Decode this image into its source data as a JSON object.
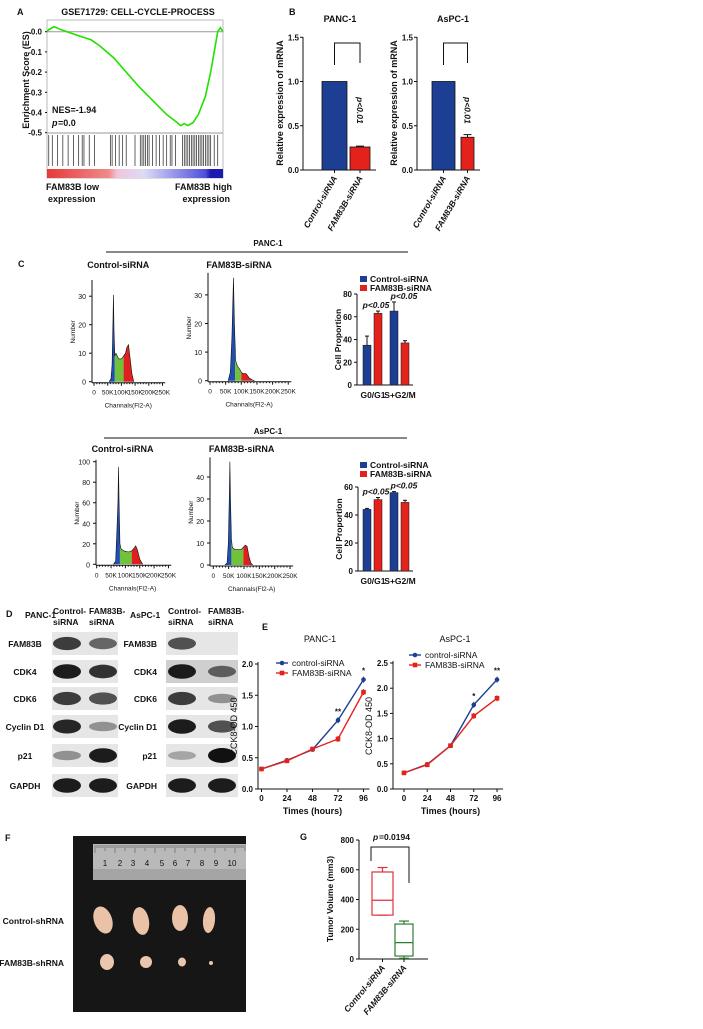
{
  "panel_labels": {
    "A": "A",
    "B": "B",
    "C": "C",
    "D": "D",
    "E": "E",
    "F": "F",
    "G": "G"
  },
  "colors": {
    "control_blue": "#1c3f94",
    "fam83b_red": "#e3231b",
    "es_green": "#22e000",
    "box_red": "#e0303c",
    "box_green": "#2e7d32",
    "g1_blue": "#1f4fb5",
    "s_green": "#6fc23a",
    "g2_red": "#e02020"
  },
  "chart_data": [
    {
      "id": "A",
      "type": "line",
      "title": "GSE71729: CELL-CYCLE-PROCESS",
      "ylabel": "Enrichment Score (ES)",
      "ylim": [
        -0.5,
        0.05
      ],
      "yticks": [
        "0.0",
        "-0.1",
        "-0.2",
        "-0.3",
        "-0.4",
        "-0.5"
      ],
      "nes": "NES=-1.94",
      "p_label": "p",
      "p_value": "=0.0",
      "low_label": [
        "FAM83B low",
        "expression"
      ],
      "high_label": [
        "FAM83B high",
        "expression"
      ],
      "es_curve": [
        [
          0,
          0
        ],
        [
          0.01,
          0.01
        ],
        [
          0.04,
          0.025
        ],
        [
          0.08,
          0.01
        ],
        [
          0.13,
          -0.005
        ],
        [
          0.18,
          -0.02
        ],
        [
          0.25,
          -0.04
        ],
        [
          0.3,
          -0.07
        ],
        [
          0.38,
          -0.13
        ],
        [
          0.45,
          -0.2
        ],
        [
          0.52,
          -0.27
        ],
        [
          0.6,
          -0.34
        ],
        [
          0.68,
          -0.41
        ],
        [
          0.74,
          -0.45
        ],
        [
          0.76,
          -0.465
        ],
        [
          0.78,
          -0.455
        ],
        [
          0.8,
          -0.465
        ],
        [
          0.83,
          -0.45
        ],
        [
          0.86,
          -0.41
        ],
        [
          0.9,
          -0.32
        ],
        [
          0.93,
          -0.2
        ],
        [
          0.95,
          -0.1
        ],
        [
          0.97,
          0.0
        ],
        [
          0.985,
          0.02
        ],
        [
          1.0,
          0.0
        ]
      ],
      "hits": [
        0.01,
        0.03,
        0.06,
        0.09,
        0.12,
        0.15,
        0.18,
        0.2,
        0.21,
        0.24,
        0.27,
        0.36,
        0.37,
        0.39,
        0.41,
        0.43,
        0.45,
        0.5,
        0.53,
        0.54,
        0.55,
        0.56,
        0.57,
        0.58,
        0.6,
        0.62,
        0.64,
        0.66,
        0.68,
        0.7,
        0.71,
        0.73,
        0.77,
        0.78,
        0.79,
        0.8,
        0.81,
        0.82,
        0.83,
        0.84,
        0.85,
        0.86,
        0.87,
        0.88,
        0.89,
        0.9,
        0.91,
        0.92,
        0.93,
        0.95,
        0.97
      ]
    },
    {
      "id": "B1",
      "type": "bar",
      "title": "PANC-1",
      "ylabel": "Relative expression of mRNA",
      "categories": [
        "Control-siRNA",
        "FAM83B-siRNA"
      ],
      "values": [
        1.0,
        0.26
      ],
      "errors": [
        0,
        0.01
      ],
      "ylim": [
        0,
        1.5
      ],
      "yticks": [
        "0.0",
        "0.5",
        "1.0",
        "1.5"
      ],
      "annotation": "p<0.01"
    },
    {
      "id": "B2",
      "type": "bar",
      "title": "AsPC-1",
      "ylabel": "Relative expression of mRNA",
      "categories": [
        "Control-siRNA",
        "FAM83B-siRNA"
      ],
      "values": [
        1.0,
        0.37
      ],
      "errors": [
        0,
        0.03
      ],
      "ylim": [
        0,
        1.5
      ],
      "yticks": [
        "0.0",
        "0.5",
        "1.0",
        "1.5"
      ],
      "annotation": "p<0.01"
    },
    {
      "id": "C_PANC_ctrl",
      "type": "area",
      "group": "PANC-1",
      "title": "Control-siRNA",
      "xlabel": "Channals(Fl2-A)",
      "ylabel": "Number",
      "xticks": [
        "0",
        "50K",
        "100K",
        "150K",
        "200K",
        "250K"
      ],
      "yticks": [
        "0",
        "10",
        "20",
        "30"
      ],
      "ylim": [
        0,
        35
      ],
      "xlim": [
        0,
        250
      ],
      "phase_bounds": [
        76,
        108
      ],
      "points": [
        [
          55,
          0
        ],
        [
          62,
          1
        ],
        [
          66,
          6
        ],
        [
          69,
          20
        ],
        [
          71,
          30.5
        ],
        [
          73,
          18
        ],
        [
          76,
          9
        ],
        [
          80,
          10
        ],
        [
          90,
          8
        ],
        [
          100,
          8
        ],
        [
          108,
          9
        ],
        [
          115,
          10
        ],
        [
          120,
          12
        ],
        [
          126,
          13
        ],
        [
          132,
          8
        ],
        [
          138,
          3
        ],
        [
          145,
          0
        ]
      ]
    },
    {
      "id": "C_PANC_fam",
      "type": "area",
      "group": "PANC-1",
      "title": "FAM83B-siRNA",
      "xlabel": "Channals(Fl2-A)",
      "ylabel": "Number",
      "xticks": [
        "0",
        "50K",
        "100K",
        "150K",
        "200K",
        "250K"
      ],
      "yticks": [
        "0",
        "10",
        "20",
        "30"
      ],
      "ylim": [
        0,
        37
      ],
      "xlim": [
        0,
        250
      ],
      "phase_bounds": [
        80,
        100
      ],
      "points": [
        [
          58,
          0
        ],
        [
          65,
          3
        ],
        [
          70,
          15
        ],
        [
          75,
          36
        ],
        [
          78,
          20
        ],
        [
          82,
          7
        ],
        [
          88,
          5
        ],
        [
          95,
          4
        ],
        [
          100,
          3
        ],
        [
          105,
          2.5
        ],
        [
          115,
          2.5
        ],
        [
          125,
          1
        ],
        [
          135,
          0.3
        ],
        [
          142,
          0
        ]
      ]
    },
    {
      "id": "C_PANC_bar",
      "type": "bar",
      "ylabel": "Cell Proportion",
      "categories": [
        "G0/G1",
        "S+G2/M"
      ],
      "series": [
        {
          "name": "Control-siRNA",
          "values": [
            35,
            65
          ],
          "errors": [
            8,
            8
          ]
        },
        {
          "name": "FAM83B-siRNA",
          "values": [
            63,
            37
          ],
          "errors": [
            2,
            2
          ]
        }
      ],
      "ylim": [
        0,
        80
      ],
      "yticks": [
        "0",
        "20",
        "40",
        "60",
        "80"
      ],
      "annotations": [
        "p<0.05",
        "p<0.05"
      ]
    },
    {
      "id": "C_AsPC_ctrl",
      "type": "area",
      "group": "AsPC-1",
      "title": "Control-siRNA",
      "xlabel": "Channals(Fl2-A)",
      "ylabel": "Number",
      "xticks": [
        "0",
        "50K",
        "100K",
        "150K",
        "200K",
        "250K"
      ],
      "yticks": [
        "0",
        "20",
        "40",
        "60",
        "80",
        "100"
      ],
      "ylim": [
        0,
        100
      ],
      "xlim": [
        0,
        250
      ],
      "phase_bounds": [
        81,
        122
      ],
      "points": [
        [
          58,
          0
        ],
        [
          66,
          3
        ],
        [
          70,
          30
        ],
        [
          74,
          60
        ],
        [
          76,
          95
        ],
        [
          78,
          60
        ],
        [
          81,
          20
        ],
        [
          85,
          15
        ],
        [
          95,
          13
        ],
        [
          110,
          12
        ],
        [
          122,
          13
        ],
        [
          128,
          15
        ],
        [
          136,
          18
        ],
        [
          142,
          14
        ],
        [
          150,
          5
        ],
        [
          160,
          0
        ]
      ]
    },
    {
      "id": "C_AsPC_fam",
      "type": "area",
      "group": "AsPC-1",
      "title": "FAM83B-siRNA",
      "xlabel": "Channals(Fl2-A)",
      "ylabel": "Number",
      "xticks": [
        "0",
        "50K",
        "100K",
        "150K",
        "200K",
        "250K"
      ],
      "yticks": [
        "0",
        "10",
        "20",
        "30",
        "40"
      ],
      "ylim": [
        0,
        48
      ],
      "xlim": [
        0,
        250
      ],
      "phase_bounds": [
        59,
        98
      ],
      "points": [
        [
          38,
          0
        ],
        [
          45,
          1
        ],
        [
          49,
          10
        ],
        [
          52,
          30
        ],
        [
          54,
          47
        ],
        [
          56,
          30
        ],
        [
          59,
          12
        ],
        [
          62,
          8
        ],
        [
          70,
          7
        ],
        [
          80,
          7
        ],
        [
          90,
          7
        ],
        [
          98,
          8
        ],
        [
          104,
          9
        ],
        [
          110,
          8.5
        ],
        [
          116,
          4
        ],
        [
          122,
          1
        ],
        [
          128,
          0
        ]
      ]
    },
    {
      "id": "C_AsPC_bar",
      "type": "bar",
      "ylabel": "Cell Proportion",
      "categories": [
        "G0/G1",
        "S+G2/M"
      ],
      "series": [
        {
          "name": "Control-siRNA",
          "values": [
            44,
            56
          ],
          "errors": [
            0.7,
            0.7
          ]
        },
        {
          "name": "FAM83B-siRNA",
          "values": [
            51,
            49
          ],
          "errors": [
            1.5,
            1.5
          ]
        }
      ],
      "ylim": [
        0,
        60
      ],
      "yticks": [
        "0",
        "20",
        "40",
        "60"
      ],
      "annotations": [
        "p<0.05",
        "p<0.05"
      ]
    },
    {
      "id": "E1",
      "type": "line",
      "title": "PANC-1",
      "xlabel": "Times (hours)",
      "ylabel": "CCK8-OD 450",
      "x": [
        0,
        24,
        48,
        72,
        96
      ],
      "xticks": [
        "0",
        "24",
        "48",
        "72",
        "96"
      ],
      "yticks": [
        "0.0",
        "0.5",
        "1.0",
        "1.5",
        "2.0"
      ],
      "ylim": [
        0,
        2.0
      ],
      "series": [
        {
          "name": "control-siRNA",
          "values": [
            0.32,
            0.46,
            0.63,
            1.1,
            1.75
          ]
        },
        {
          "name": "FAM83B-siRNA",
          "values": [
            0.32,
            0.45,
            0.64,
            0.8,
            1.55
          ]
        }
      ],
      "significance": [
        {
          "x": 72,
          "label": "**"
        },
        {
          "x": 96,
          "label": "*"
        }
      ]
    },
    {
      "id": "E2",
      "type": "line",
      "title": "AsPC-1",
      "xlabel": "Times (hours)",
      "ylabel": "CCK8-OD 450",
      "x": [
        0,
        24,
        48,
        72,
        96
      ],
      "xticks": [
        "0",
        "24",
        "48",
        "72",
        "96"
      ],
      "yticks": [
        "0.0",
        "0.5",
        "1.0",
        "1.5",
        "2.0",
        "2.5"
      ],
      "ylim": [
        0,
        2.5
      ],
      "series": [
        {
          "name": "control-siRNA",
          "values": [
            0.32,
            0.49,
            0.86,
            1.67,
            2.17
          ]
        },
        {
          "name": "FAM83B-siRNA",
          "values": [
            0.32,
            0.48,
            0.86,
            1.45,
            1.8
          ]
        }
      ],
      "significance": [
        {
          "x": 72,
          "label": "*"
        },
        {
          "x": 96,
          "label": "**"
        }
      ]
    },
    {
      "id": "G",
      "type": "box",
      "ylabel": "Tumor Volume (mm3)",
      "categories": [
        "Control-siRNA",
        "FAM83B-siRNA"
      ],
      "boxes": [
        {
          "min": 295,
          "q1": 295,
          "median": 395,
          "q3": 585,
          "max": 615
        },
        {
          "min": 5,
          "q1": 20,
          "median": 110,
          "q3": 235,
          "max": 255
        }
      ],
      "ylim": [
        0,
        800
      ],
      "yticks": [
        "0",
        "200",
        "400",
        "600",
        "800"
      ],
      "annotation_p": "p",
      "annotation_value": "=0.0194"
    }
  ],
  "section_headers": {
    "panc": "PANC-1",
    "aspc": "AsPC-1"
  },
  "western_blot": {
    "blots": [
      {
        "cell_line": "PANC-1",
        "lanes": [
          "Control-\nsiRNA",
          "FAM83B-\nsiRNA"
        ],
        "rows": [
          {
            "protein": "FAM83B",
            "intensity": [
              0.8,
              0.6
            ]
          },
          {
            "protein": "CDK4",
            "intensity": [
              0.95,
              0.85
            ]
          },
          {
            "protein": "CDK6",
            "intensity": [
              0.8,
              0.7
            ]
          },
          {
            "protein": "Cyclin D1",
            "intensity": [
              0.9,
              0.4
            ]
          },
          {
            "protein": "p21",
            "intensity": [
              0.4,
              0.95
            ]
          },
          {
            "protein": "GAPDH",
            "intensity": [
              0.95,
              0.95
            ]
          }
        ]
      },
      {
        "cell_line": "AsPC-1",
        "lanes": [
          "Control-\nsiRNA",
          "FAM83B-\nsiRNA"
        ],
        "rows": [
          {
            "protein": "FAM83B",
            "intensity": [
              0.7,
              0
            ]
          },
          {
            "protein": "CDK4",
            "intensity": [
              0.95,
              0.6
            ]
          },
          {
            "protein": "CDK6",
            "intensity": [
              0.8,
              0.4
            ]
          },
          {
            "protein": "Cyclin D1",
            "intensity": [
              0.95,
              0.7
            ]
          },
          {
            "protein": "p21",
            "intensity": [
              0.3,
              1.0
            ]
          },
          {
            "protein": "GAPDH",
            "intensity": [
              0.95,
              0.95
            ]
          }
        ]
      }
    ]
  },
  "photo": {
    "rows": [
      "Control-shRNA",
      "FAM83B-shRNA"
    ],
    "ruler_numbers": [
      "1",
      "2",
      "3",
      "4",
      "5",
      "6",
      "7",
      "8",
      "9",
      "10"
    ]
  }
}
